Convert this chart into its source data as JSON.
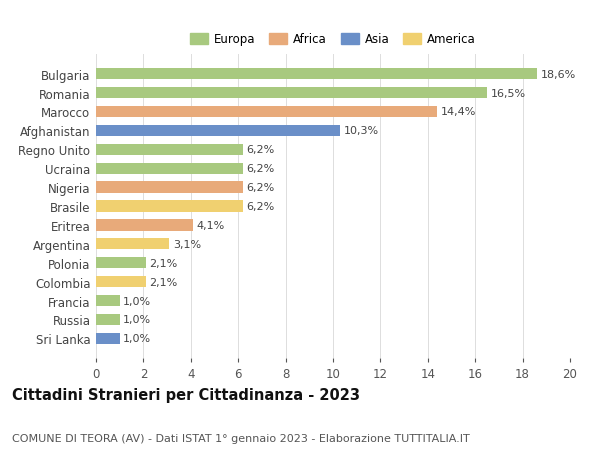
{
  "categories": [
    "Sri Lanka",
    "Russia",
    "Francia",
    "Colombia",
    "Polonia",
    "Argentina",
    "Eritrea",
    "Brasile",
    "Nigeria",
    "Ucraina",
    "Regno Unito",
    "Afghanistan",
    "Marocco",
    "Romania",
    "Bulgaria"
  ],
  "values": [
    1.0,
    1.0,
    1.0,
    2.1,
    2.1,
    3.1,
    4.1,
    6.2,
    6.2,
    6.2,
    6.2,
    10.3,
    14.4,
    16.5,
    18.6
  ],
  "labels": [
    "1,0%",
    "1,0%",
    "1,0%",
    "2,1%",
    "2,1%",
    "3,1%",
    "4,1%",
    "6,2%",
    "6,2%",
    "6,2%",
    "6,2%",
    "10,3%",
    "14,4%",
    "16,5%",
    "18,6%"
  ],
  "continents": [
    "Asia",
    "Europa",
    "Europa",
    "America",
    "Europa",
    "America",
    "Africa",
    "America",
    "Africa",
    "Europa",
    "Europa",
    "Asia",
    "Africa",
    "Europa",
    "Europa"
  ],
  "continent_colors": {
    "Europa": "#a8c97f",
    "Africa": "#e8aa7a",
    "Asia": "#6a8fc8",
    "America": "#f0d070"
  },
  "legend_order": [
    "Europa",
    "Africa",
    "Asia",
    "America"
  ],
  "title": "Cittadini Stranieri per Cittadinanza - 2023",
  "subtitle": "COMUNE DI TEORA (AV) - Dati ISTAT 1° gennaio 2023 - Elaborazione TUTTITALIA.IT",
  "xlim": [
    0,
    20
  ],
  "xticks": [
    0,
    2,
    4,
    6,
    8,
    10,
    12,
    14,
    16,
    18,
    20
  ],
  "background_color": "#ffffff",
  "bar_height": 0.6,
  "title_fontsize": 10.5,
  "subtitle_fontsize": 8,
  "tick_fontsize": 8.5,
  "label_fontsize": 8,
  "legend_fontsize": 8.5
}
